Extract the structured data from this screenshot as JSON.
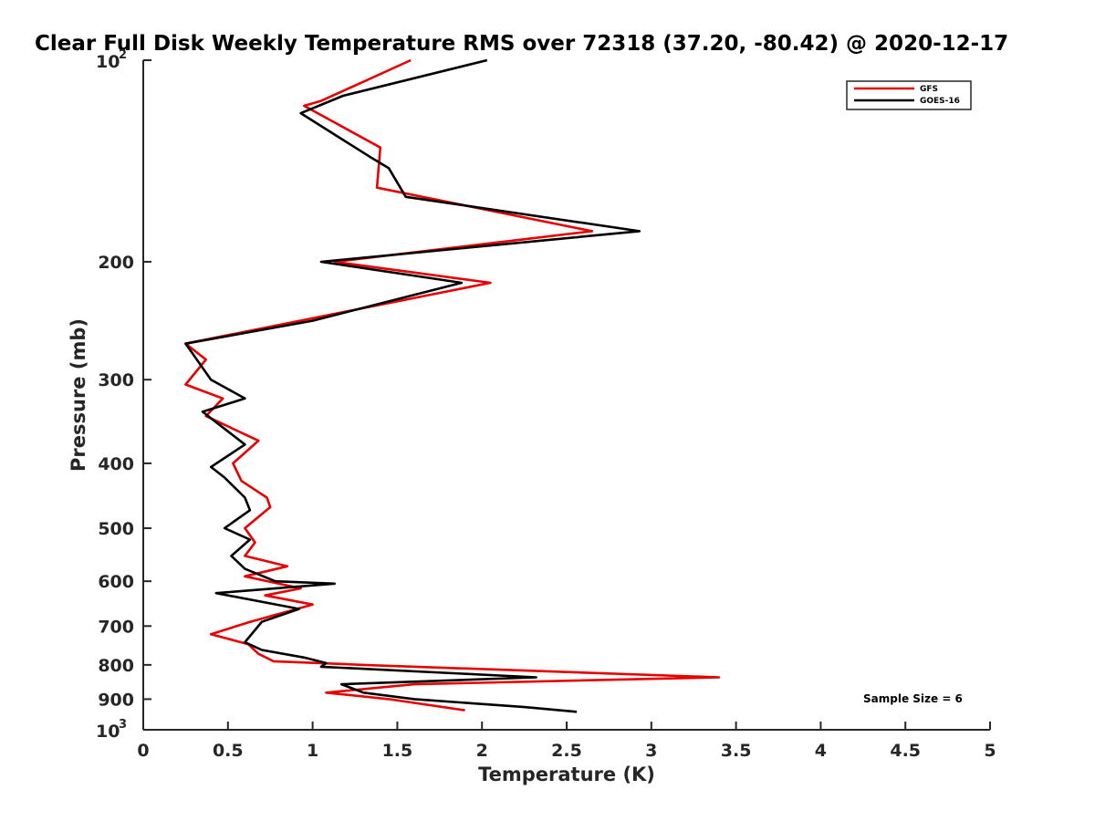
{
  "chart_data": {
    "type": "line",
    "title": "Clear Full Disk Weekly Temperature RMS over 72318 (37.20, -80.42) @ 2020-12-17",
    "xlabel": "Temperature (K)",
    "ylabel": "Pressure (mb)",
    "xlim": [
      0,
      5
    ],
    "ylim": [
      100,
      1000
    ],
    "y_scale": "log",
    "y_reversed": true,
    "x_ticks": [
      "0",
      "0.5",
      "1",
      "1.5",
      "2",
      "2.5",
      "3",
      "3.5",
      "4",
      "4.5",
      "5"
    ],
    "y_ticks": [
      {
        "value": 100,
        "label": "10",
        "sup": "2"
      },
      {
        "value": 200,
        "label": "200"
      },
      {
        "value": 300,
        "label": "300"
      },
      {
        "value": 400,
        "label": "400"
      },
      {
        "value": 500,
        "label": "500"
      },
      {
        "value": 600,
        "label": "600"
      },
      {
        "value": 700,
        "label": "700"
      },
      {
        "value": 800,
        "label": "800"
      },
      {
        "value": 900,
        "label": "900"
      },
      {
        "value": 1000,
        "label": "10",
        "sup": "3"
      }
    ],
    "grid": false,
    "legend_position": "top-right",
    "annotation": "Sample Size = 6",
    "series": [
      {
        "name": "GFS",
        "color": "#e60000",
        "points": [
          [
            1.58,
            100
          ],
          [
            1.05,
            115
          ],
          [
            0.95,
            117
          ],
          [
            1.4,
            135
          ],
          [
            1.38,
            155
          ],
          [
            2.65,
            180
          ],
          [
            1.13,
            200
          ],
          [
            2.05,
            215
          ],
          [
            1.1,
            240
          ],
          [
            0.25,
            265
          ],
          [
            0.37,
            280
          ],
          [
            0.25,
            305
          ],
          [
            0.47,
            320
          ],
          [
            0.37,
            340
          ],
          [
            0.68,
            370
          ],
          [
            0.53,
            400
          ],
          [
            0.58,
            425
          ],
          [
            0.73,
            450
          ],
          [
            0.75,
            465
          ],
          [
            0.6,
            500
          ],
          [
            0.66,
            525
          ],
          [
            0.6,
            550
          ],
          [
            0.85,
            570
          ],
          [
            0.6,
            590
          ],
          [
            0.93,
            615
          ],
          [
            0.72,
            630
          ],
          [
            1.0,
            650
          ],
          [
            0.63,
            690
          ],
          [
            0.4,
            720
          ],
          [
            0.62,
            745
          ],
          [
            0.68,
            770
          ],
          [
            0.77,
            790
          ],
          [
            1.3,
            800
          ],
          [
            3.4,
            835
          ],
          [
            1.6,
            855
          ],
          [
            1.08,
            880
          ],
          [
            1.45,
            900
          ],
          [
            1.9,
            935
          ]
        ]
      },
      {
        "name": "GOES-16",
        "color": "#000000",
        "points": [
          [
            2.03,
            100
          ],
          [
            1.18,
            113
          ],
          [
            0.93,
            120
          ],
          [
            1.35,
            140
          ],
          [
            1.45,
            145
          ],
          [
            1.55,
            160
          ],
          [
            2.93,
            180
          ],
          [
            1.05,
            200
          ],
          [
            1.88,
            215
          ],
          [
            1.0,
            245
          ],
          [
            0.25,
            265
          ],
          [
            0.4,
            300
          ],
          [
            0.6,
            320
          ],
          [
            0.35,
            335
          ],
          [
            0.6,
            375
          ],
          [
            0.4,
            405
          ],
          [
            0.48,
            420
          ],
          [
            0.6,
            450
          ],
          [
            0.63,
            470
          ],
          [
            0.48,
            500
          ],
          [
            0.63,
            520
          ],
          [
            0.52,
            550
          ],
          [
            0.6,
            575
          ],
          [
            0.78,
            600
          ],
          [
            1.13,
            605
          ],
          [
            0.43,
            625
          ],
          [
            0.92,
            660
          ],
          [
            0.7,
            690
          ],
          [
            0.6,
            740
          ],
          [
            0.7,
            760
          ],
          [
            0.95,
            780
          ],
          [
            1.08,
            795
          ],
          [
            1.05,
            805
          ],
          [
            2.32,
            835
          ],
          [
            1.17,
            855
          ],
          [
            1.3,
            880
          ],
          [
            1.6,
            900
          ],
          [
            2.25,
            925
          ],
          [
            2.56,
            940
          ]
        ]
      }
    ]
  }
}
